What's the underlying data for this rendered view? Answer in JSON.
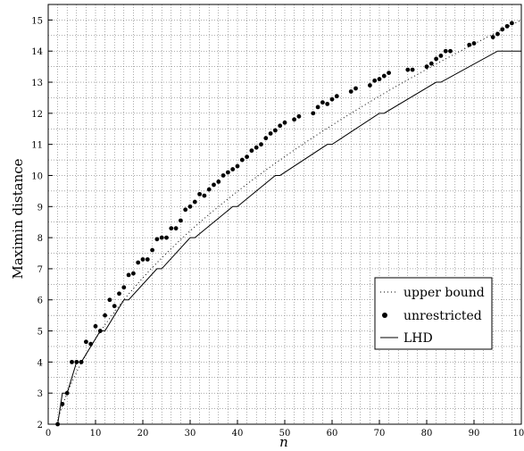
{
  "chart_data": {
    "type": "line",
    "xlabel": "n",
    "ylabel": "Maximin distance",
    "xlim": [
      0,
      100
    ],
    "ylim": [
      2,
      15.5
    ],
    "xticks": [
      0,
      10,
      20,
      30,
      40,
      50,
      60,
      70,
      80,
      90,
      100
    ],
    "yticks": [
      2,
      3,
      4,
      5,
      6,
      7,
      8,
      9,
      10,
      11,
      12,
      13,
      14,
      15
    ],
    "grid": true,
    "legend_position": "lower-right",
    "legend": [
      "upper bound",
      "unrestricted",
      "LHD"
    ],
    "series": [
      {
        "name": "upper bound",
        "style": "dotted",
        "function": "1.5 * sqrt(n)",
        "x": [
          2,
          5,
          10,
          15,
          20,
          25,
          30,
          35,
          40,
          45,
          50,
          55,
          60,
          65,
          70,
          75,
          80,
          85,
          90,
          95,
          100
        ],
        "y": [
          2.12,
          3.35,
          4.74,
          5.81,
          6.71,
          7.5,
          8.22,
          8.87,
          9.49,
          10.06,
          10.61,
          11.12,
          11.62,
          12.09,
          12.55,
          12.99,
          13.42,
          13.83,
          14.23,
          14.62,
          15.0
        ]
      },
      {
        "name": "unrestricted",
        "style": "points",
        "x": [
          2,
          3,
          4,
          5,
          6,
          7,
          8,
          9,
          10,
          11,
          12,
          13,
          14,
          15,
          16,
          17,
          18,
          19,
          20,
          21,
          22,
          23,
          24,
          25,
          26,
          27,
          28,
          29,
          30,
          31,
          32,
          33,
          34,
          35,
          36,
          37,
          38,
          39,
          40,
          41,
          42,
          43,
          44,
          45,
          46,
          47,
          48,
          49,
          50,
          52,
          53,
          56,
          57,
          58,
          59,
          60,
          61,
          64,
          65,
          68,
          69,
          70,
          71,
          72,
          76,
          77,
          80,
          81,
          82,
          83,
          84,
          85,
          89,
          90,
          94,
          95,
          96,
          97,
          98
        ],
        "y": [
          2.0,
          2.65,
          3.0,
          4.0,
          4.0,
          4.0,
          4.65,
          4.58,
          5.15,
          5.0,
          5.5,
          6.0,
          5.8,
          6.2,
          6.4,
          6.8,
          6.85,
          7.2,
          7.3,
          7.3,
          7.6,
          7.95,
          8.0,
          8.0,
          8.3,
          8.3,
          8.55,
          8.9,
          9.0,
          9.15,
          9.4,
          9.35,
          9.55,
          9.7,
          9.8,
          10.0,
          10.1,
          10.2,
          10.3,
          10.5,
          10.6,
          10.8,
          10.9,
          11.0,
          11.2,
          11.35,
          11.45,
          11.6,
          11.7,
          11.8,
          11.9,
          12.0,
          12.2,
          12.35,
          12.3,
          12.45,
          12.55,
          12.7,
          12.8,
          12.9,
          13.05,
          13.1,
          13.2,
          13.3,
          13.4,
          13.4,
          13.5,
          13.6,
          13.75,
          13.85,
          14.0,
          14.0,
          14.2,
          14.25,
          14.45,
          14.55,
          14.7,
          14.8,
          14.9
        ]
      },
      {
        "name": "LHD",
        "style": "step",
        "x": [
          2,
          3,
          4,
          6,
          7,
          11,
          12,
          16,
          17,
          23,
          24,
          30,
          31,
          39,
          40,
          48,
          49,
          59,
          60,
          70,
          71,
          82,
          83,
          95,
          96,
          100
        ],
        "y": [
          2,
          3,
          3,
          4,
          4,
          5,
          5,
          6,
          6,
          7,
          7,
          8,
          8,
          9,
          9,
          10,
          10,
          11,
          11,
          12,
          12,
          13,
          13,
          14,
          14,
          14
        ]
      }
    ]
  }
}
